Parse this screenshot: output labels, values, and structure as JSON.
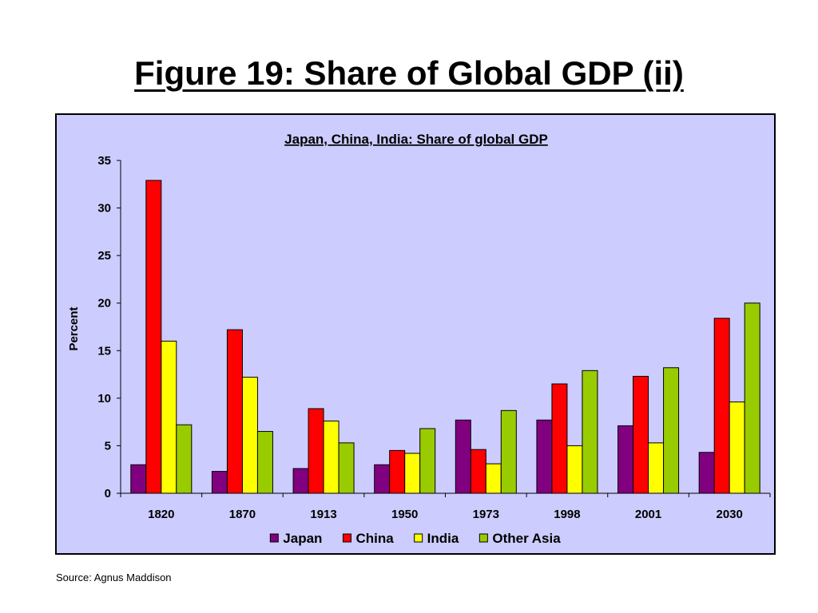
{
  "slide": {
    "title": "Figure 19: Share of Global GDP (ii)",
    "source": "Source: Agnus Maddison"
  },
  "colors": {
    "plot_background": "#ccccff",
    "Japan": "#800080",
    "China": "#ff0000",
    "India": "#ffff00",
    "Other Asia": "#99cc00"
  },
  "chart_data": {
    "type": "bar",
    "title": "Japan, China, India: Share of global GDP",
    "xlabel": "",
    "ylabel": "Percent",
    "ylim": [
      0,
      35
    ],
    "yticks": [
      0,
      5,
      10,
      15,
      20,
      25,
      30,
      35
    ],
    "grid": false,
    "legend_position": "bottom",
    "categories": [
      "1820",
      "1870",
      "1913",
      "1950",
      "1973",
      "1998",
      "2001",
      "2030"
    ],
    "series": [
      {
        "name": "Japan",
        "values": [
          3.0,
          2.3,
          2.6,
          3.0,
          7.7,
          7.7,
          7.1,
          4.3
        ]
      },
      {
        "name": "China",
        "values": [
          32.9,
          17.2,
          8.9,
          4.5,
          4.6,
          11.5,
          12.3,
          18.4
        ]
      },
      {
        "name": "India",
        "values": [
          16.0,
          12.2,
          7.6,
          4.2,
          3.1,
          5.0,
          5.3,
          9.6
        ]
      },
      {
        "name": "Other Asia",
        "values": [
          7.2,
          6.5,
          5.3,
          6.8,
          8.7,
          12.9,
          13.2,
          20.0
        ]
      }
    ]
  }
}
